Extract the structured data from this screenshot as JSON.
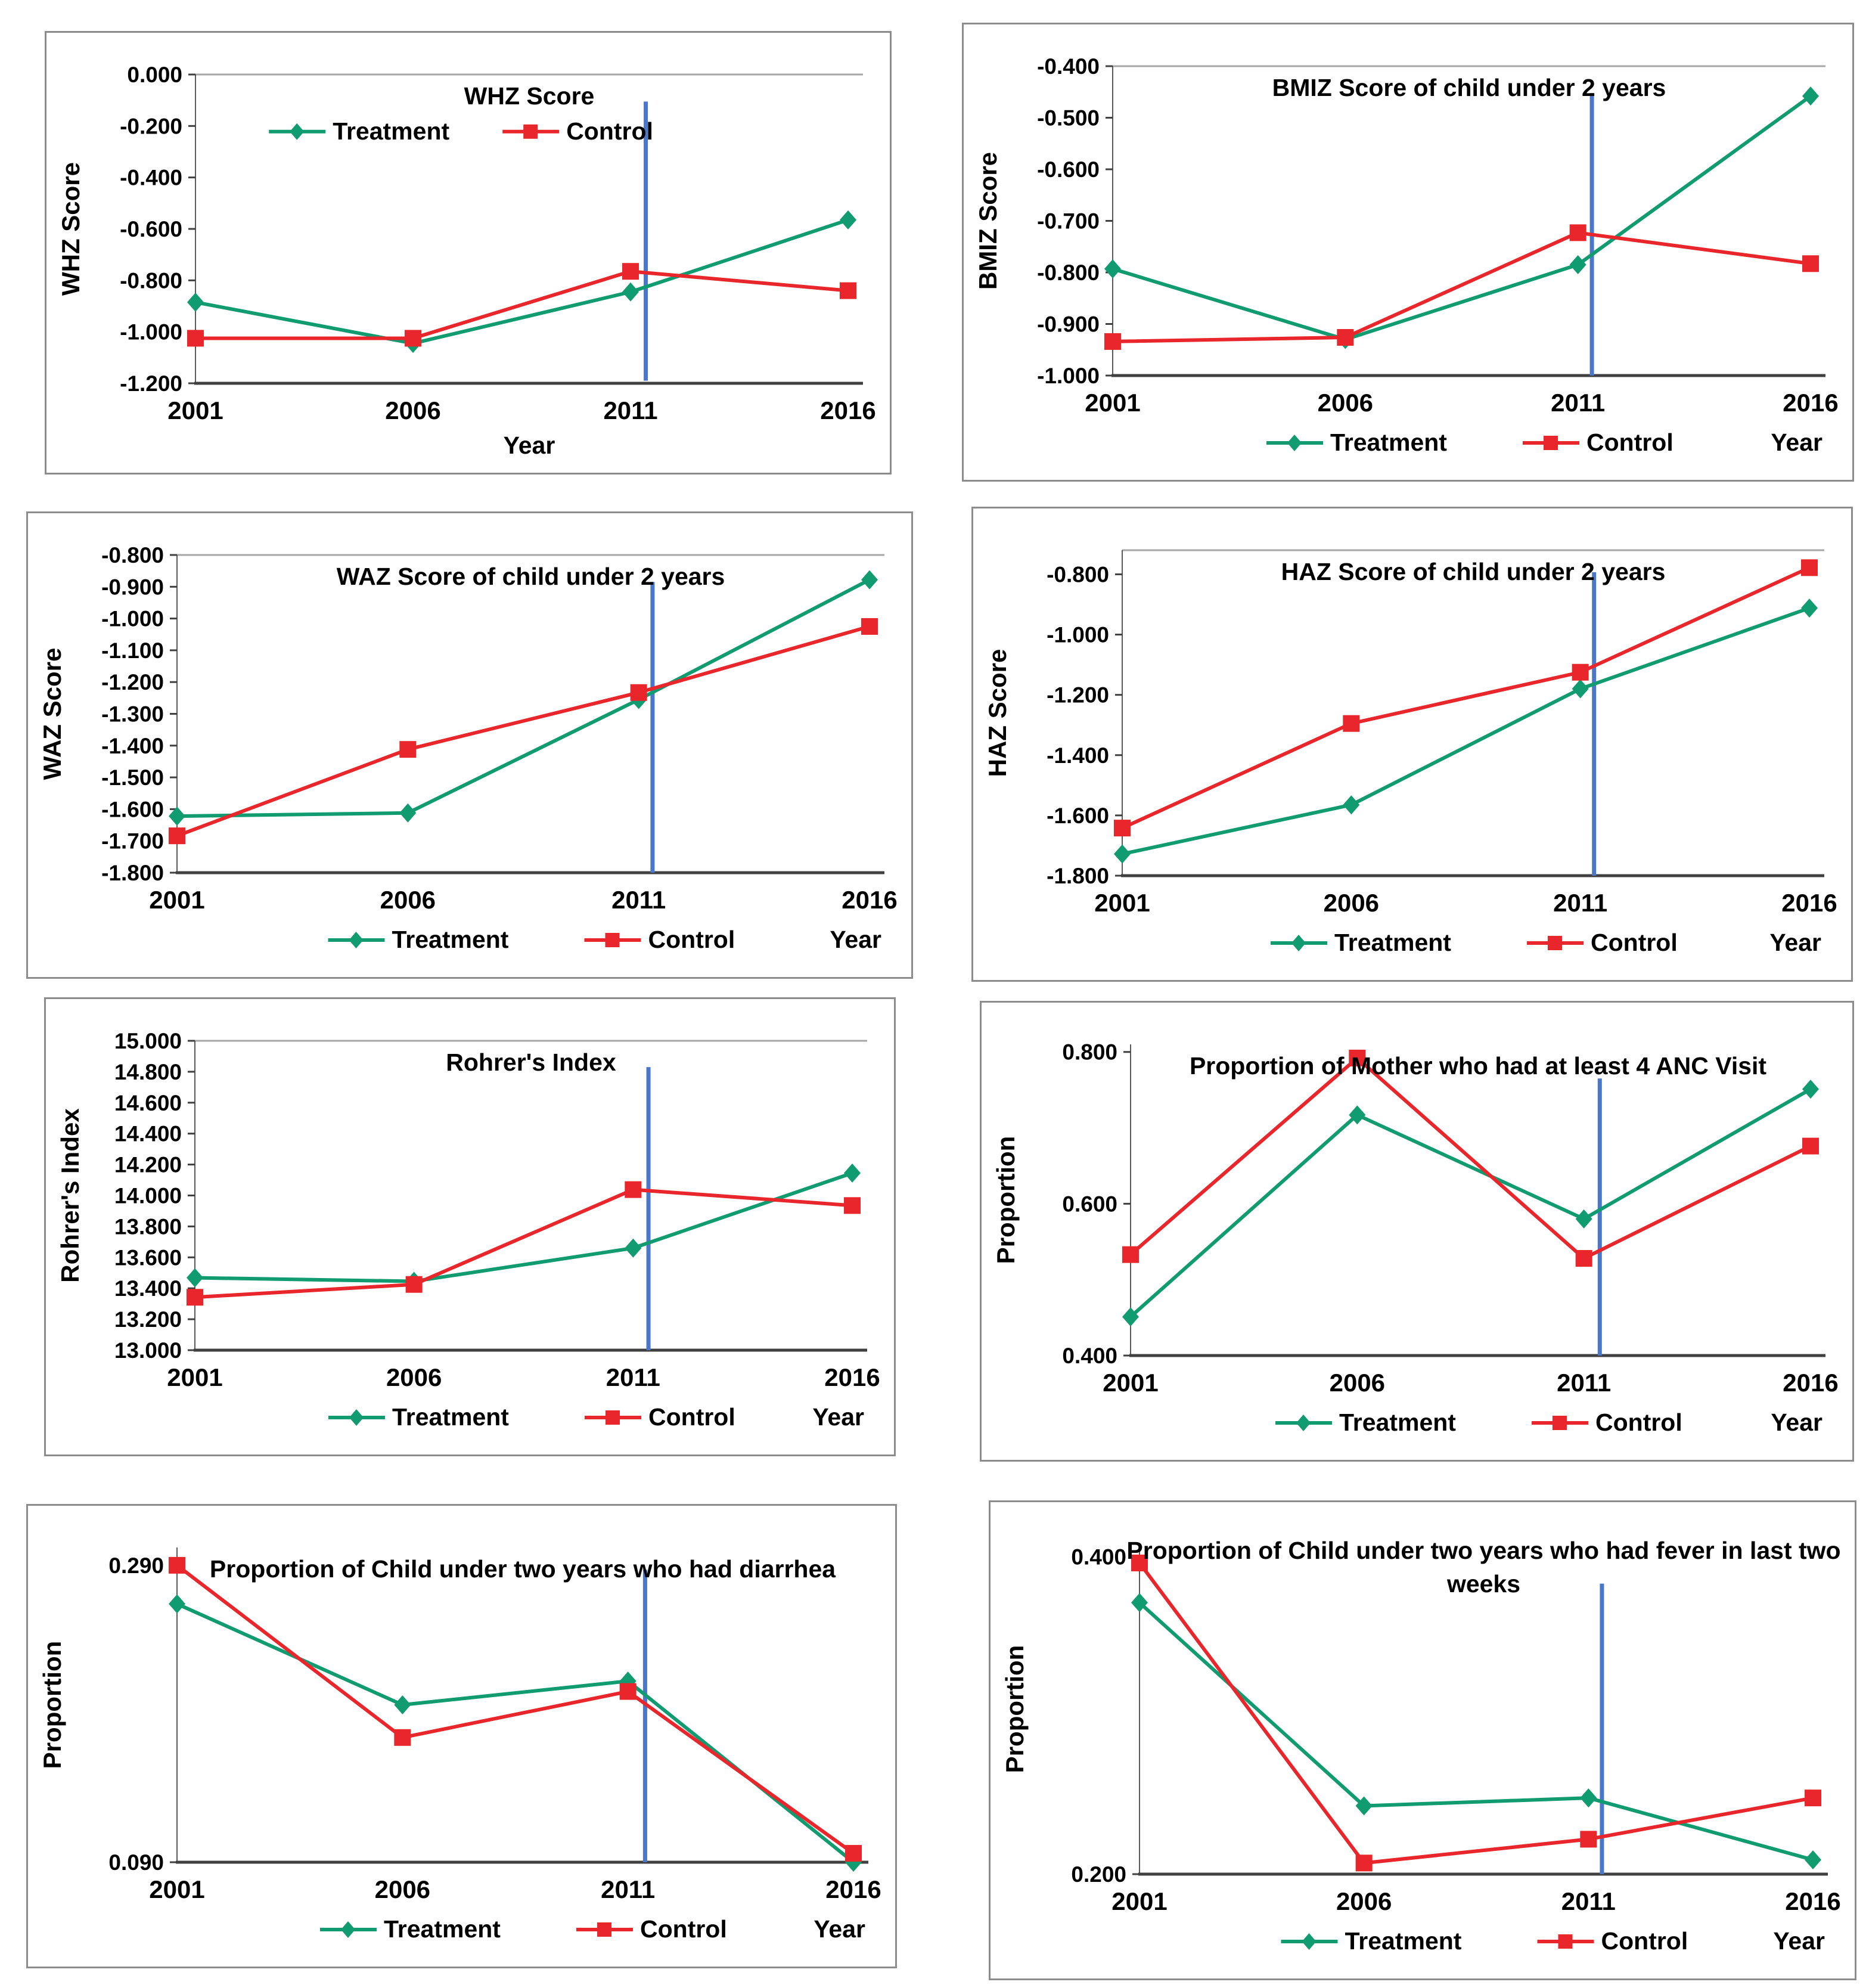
{
  "page": {
    "background": "#ffffff"
  },
  "colors": {
    "treatment": "#119B71",
    "control": "#E8262B",
    "vline": "#4A77C9",
    "axis_dark": "#404040",
    "axis_light": "#595959",
    "top_border": "#A6A6A6",
    "panel_border": "#8C8C8C",
    "text": "#000000"
  },
  "legend": {
    "treatment_label": "Treatment",
    "control_label": "Control"
  },
  "xlabel": "Year",
  "chart_data": [
    {
      "type": "line",
      "name": "whz-score",
      "title_lines": [
        "WHZ Score"
      ],
      "ylabel": "WHZ Score",
      "xlabel": "Year",
      "x_values": [
        2001,
        2006,
        2011,
        2016
      ],
      "x_categories": [
        "2001",
        "2006",
        "2011",
        "2016"
      ],
      "ylim": [
        -1.2,
        0.0
      ],
      "ytick_values": [
        0.0,
        -0.2,
        -0.4,
        -0.6,
        -0.8,
        -1.0,
        -1.2
      ],
      "ytick_labels": [
        "0.000",
        "-0.200",
        "-0.400",
        "-0.600",
        "-0.800",
        "-1.000",
        "-1.200"
      ],
      "top_border": true,
      "legend_position": "inside",
      "year_label_position": "center",
      "vline": {
        "x": 2011.35,
        "y1": -0.105,
        "y2": -1.19
      },
      "series": [
        {
          "name": "Treatment",
          "marker": "diamond",
          "color_key": "treatment",
          "values": [
            -0.885,
            -1.045,
            -0.845,
            -0.565
          ]
        },
        {
          "name": "Control",
          "marker": "square",
          "color_key": "control",
          "values": [
            -1.025,
            -1.025,
            -0.765,
            -0.84
          ]
        }
      ]
    },
    {
      "type": "line",
      "name": "bmiz-score",
      "title_lines": [
        "BMIZ Score of child under 2 years"
      ],
      "ylabel": "BMIZ Score",
      "xlabel": "Year",
      "x_values": [
        2001,
        2006,
        2011,
        2016
      ],
      "x_categories": [
        "2001",
        "2006",
        "2011",
        "2016"
      ],
      "ylim": [
        -1.0,
        -0.4
      ],
      "ytick_values": [
        -0.4,
        -0.5,
        -0.6,
        -0.7,
        -0.8,
        -0.9,
        -1.0
      ],
      "ytick_labels": [
        "-0.400",
        "-0.500",
        "-0.600",
        "-0.700",
        "-0.800",
        "-0.900",
        "-1.000"
      ],
      "top_border": true,
      "legend_position": "bottom",
      "year_label_position": "right",
      "vline": {
        "x": 2011.3,
        "y1": -0.452,
        "y2": -1.0
      },
      "series": [
        {
          "name": "Treatment",
          "marker": "diamond",
          "color_key": "treatment",
          "values": [
            -0.793,
            -0.93,
            -0.785,
            -0.458
          ]
        },
        {
          "name": "Control",
          "marker": "square",
          "color_key": "control",
          "values": [
            -0.934,
            -0.926,
            -0.723,
            -0.783
          ]
        }
      ]
    },
    {
      "type": "line",
      "name": "waz-score",
      "title_lines": [
        "WAZ Score of child under 2 years"
      ],
      "ylabel": "WAZ Score",
      "xlabel": "Year",
      "x_values": [
        2001,
        2006,
        2011,
        2016
      ],
      "x_categories": [
        "2001",
        "2006",
        "2011",
        "2016"
      ],
      "ylim": [
        -1.8,
        -0.8
      ],
      "ytick_values": [
        -0.8,
        -0.9,
        -1.0,
        -1.1,
        -1.2,
        -1.3,
        -1.4,
        -1.5,
        -1.6,
        -1.7,
        -1.8
      ],
      "ytick_labels": [
        "-0.800",
        "-0.900",
        "-1.000",
        "-1.100",
        "-1.200",
        "-1.300",
        "-1.400",
        "-1.500",
        "-1.600",
        "-1.700",
        "-1.800"
      ],
      "top_border": true,
      "legend_position": "bottom",
      "year_label_position": "right",
      "vline": {
        "x": 2011.3,
        "y1": -0.885,
        "y2": -1.8
      },
      "series": [
        {
          "name": "Treatment",
          "marker": "diamond",
          "color_key": "treatment",
          "values": [
            -1.622,
            -1.612,
            -1.255,
            -0.878
          ]
        },
        {
          "name": "Control",
          "marker": "square",
          "color_key": "control",
          "values": [
            -1.684,
            -1.412,
            -1.233,
            -1.025
          ]
        }
      ]
    },
    {
      "type": "line",
      "name": "haz-score",
      "title_lines": [
        "HAZ Score of child under 2 years"
      ],
      "ylabel": "HAZ Score",
      "xlabel": "Year",
      "x_values": [
        2001,
        2006,
        2011,
        2016
      ],
      "x_categories": [
        "2001",
        "2006",
        "2011",
        "2016"
      ],
      "ylim": [
        -1.8,
        -0.72
      ],
      "ytick_values": [
        -0.8,
        -1.0,
        -1.2,
        -1.4,
        -1.6,
        -1.8
      ],
      "ytick_labels": [
        "-0.800",
        "-1.000",
        "-1.200",
        "-1.400",
        "-1.600",
        "-1.800"
      ],
      "top_border": true,
      "legend_position": "bottom",
      "year_label_position": "right",
      "vline": {
        "x": 2011.3,
        "y1": -0.793,
        "y2": -1.8
      },
      "series": [
        {
          "name": "Treatment",
          "marker": "diamond",
          "color_key": "treatment",
          "values": [
            -1.728,
            -1.565,
            -1.18,
            -0.912
          ]
        },
        {
          "name": "Control",
          "marker": "square",
          "color_key": "control",
          "values": [
            -1.642,
            -1.295,
            -1.125,
            -0.778
          ]
        }
      ]
    },
    {
      "type": "line",
      "name": "rohrers-index",
      "title_lines": [
        "Rohrer's Index"
      ],
      "ylabel": "Rohrer's Index",
      "xlabel": "Year",
      "x_values": [
        2001,
        2006,
        2011,
        2016
      ],
      "x_categories": [
        "2001",
        "2006",
        "2011",
        "2016"
      ],
      "ylim": [
        13.0,
        15.0
      ],
      "ytick_values": [
        15.0,
        14.8,
        14.6,
        14.4,
        14.2,
        14.0,
        13.8,
        13.6,
        13.4,
        13.2,
        13.0
      ],
      "ytick_labels": [
        "15.000",
        "14.800",
        "14.600",
        "14.400",
        "14.200",
        "14.000",
        "13.800",
        "13.600",
        "13.400",
        "13.200",
        "13.000"
      ],
      "top_border": true,
      "legend_position": "bottom",
      "year_label_position": "right",
      "vline": {
        "x": 2011.35,
        "y1": 14.83,
        "y2": 13.0
      },
      "series": [
        {
          "name": "Treatment",
          "marker": "diamond",
          "color_key": "treatment",
          "values": [
            13.468,
            13.445,
            13.66,
            14.145
          ]
        },
        {
          "name": "Control",
          "marker": "square",
          "color_key": "control",
          "values": [
            13.342,
            13.425,
            14.038,
            13.935
          ]
        }
      ]
    },
    {
      "type": "line",
      "name": "anc-visit",
      "title_lines": [
        "Proportion of Mother who had at least 4 ANC Visit"
      ],
      "ylabel": "Proportion",
      "xlabel": "Year",
      "x_values": [
        2001,
        2006,
        2011,
        2016
      ],
      "x_categories": [
        "2001",
        "2006",
        "2011",
        "2016"
      ],
      "ylim": [
        0.4,
        0.81
      ],
      "ytick_values": [
        0.8,
        0.6,
        0.4
      ],
      "ytick_labels": [
        "0.800",
        "0.600",
        "0.400"
      ],
      "top_border": false,
      "legend_position": "bottom",
      "year_label_position": "right",
      "vline": {
        "x": 2011.35,
        "y1": 0.765,
        "y2": 0.4
      },
      "series": [
        {
          "name": "Treatment",
          "marker": "diamond",
          "color_key": "treatment",
          "values": [
            0.451,
            0.717,
            0.58,
            0.751
          ]
        },
        {
          "name": "Control",
          "marker": "square",
          "color_key": "control",
          "values": [
            0.533,
            0.792,
            0.528,
            0.676
          ]
        }
      ]
    },
    {
      "type": "line",
      "name": "diarrhea",
      "title_lines": [
        "Proportion of Child under two years who had diarrhea"
      ],
      "ylabel": "Proportion",
      "xlabel": "Year",
      "x_values": [
        2001,
        2006,
        2011,
        2016
      ],
      "x_categories": [
        "2001",
        "2006",
        "2011",
        "2016"
      ],
      "ylim": [
        0.09,
        0.302
      ],
      "ytick_values": [
        0.29,
        0.09
      ],
      "ytick_labels": [
        "0.290",
        "0.090"
      ],
      "top_border": false,
      "legend_position": "bottom",
      "year_label_position": "right",
      "vline": {
        "x": 2011.38,
        "y1": 0.287,
        "y2": 0.09
      },
      "series": [
        {
          "name": "Treatment",
          "marker": "diamond",
          "color_key": "treatment",
          "values": [
            0.264,
            0.196,
            0.212,
            0.09
          ]
        },
        {
          "name": "Control",
          "marker": "square",
          "color_key": "control",
          "values": [
            0.29,
            0.174,
            0.205,
            0.096
          ]
        }
      ]
    },
    {
      "type": "line",
      "name": "fever",
      "title_lines": [
        "Proportion of Child under two years who had fever in last two",
        "weeks"
      ],
      "ylabel": "Proportion",
      "xlabel": "Year",
      "x_values": [
        2001,
        2006,
        2011,
        2016
      ],
      "x_categories": [
        "2001",
        "2006",
        "2011",
        "2016"
      ],
      "ylim": [
        0.2,
        0.408
      ],
      "ytick_values": [
        0.4,
        0.2
      ],
      "ytick_labels": [
        "0.400",
        "0.200"
      ],
      "top_border": false,
      "legend_position": "bottom",
      "year_label_position": "right",
      "vline": {
        "x": 2011.3,
        "y1": 0.383,
        "y2": 0.2
      },
      "series": [
        {
          "name": "Treatment",
          "marker": "diamond",
          "color_key": "treatment",
          "values": [
            0.371,
            0.243,
            0.248,
            0.209
          ]
        },
        {
          "name": "Control",
          "marker": "square",
          "color_key": "control",
          "values": [
            0.396,
            0.207,
            0.222,
            0.248
          ]
        }
      ]
    }
  ]
}
